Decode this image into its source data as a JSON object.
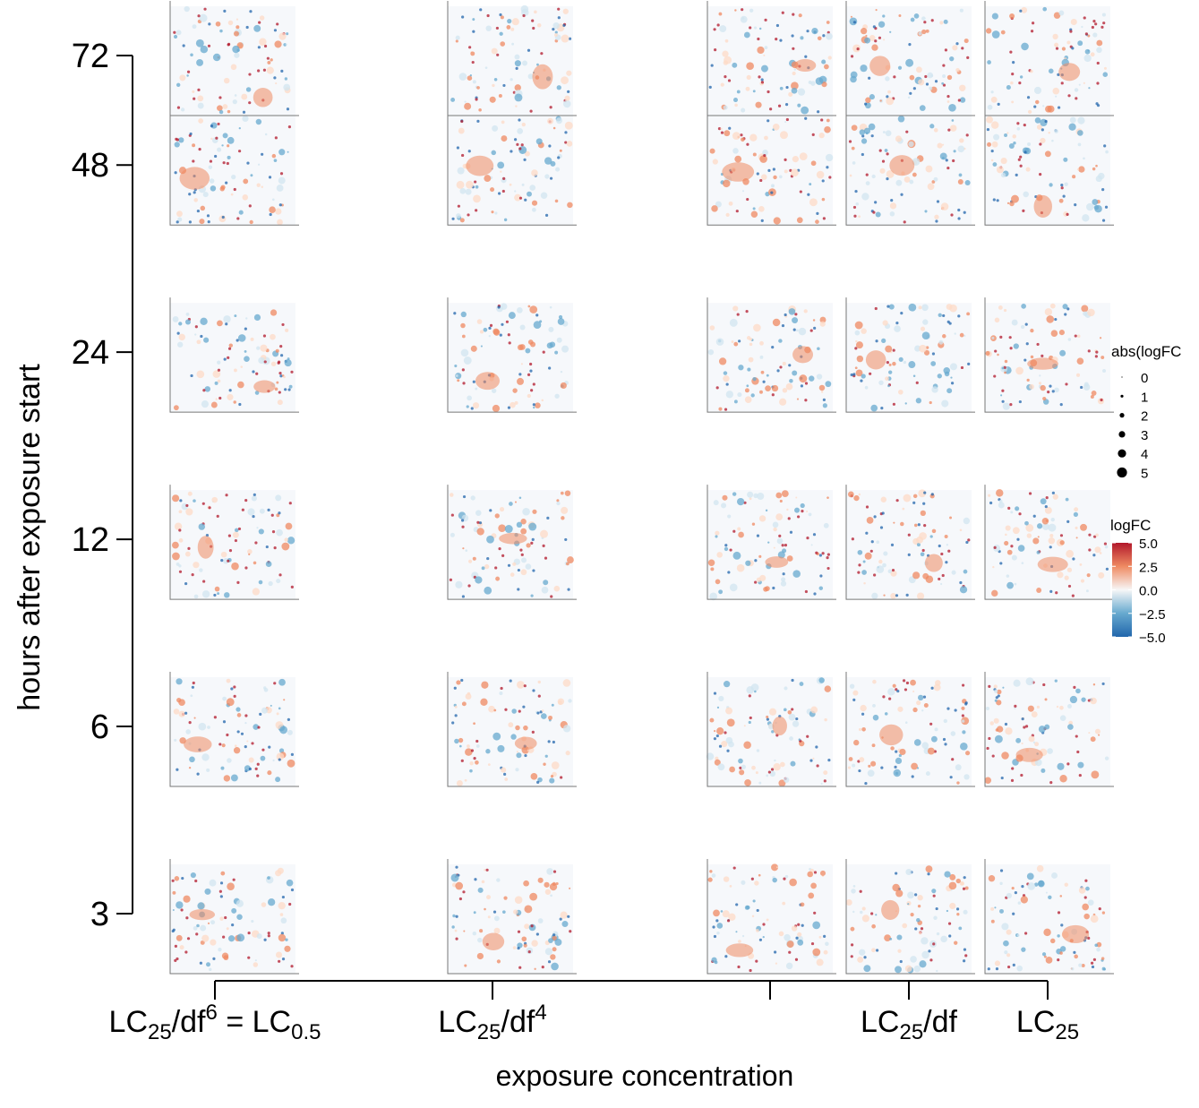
{
  "chart_data": {
    "type": "panel-grid",
    "xlabel": "exposure concentration",
    "ylabel": "hours after exposure start",
    "xlim": [
      -6,
      0
    ],
    "xticks": [
      {
        "value": -6,
        "label": [
          {
            "text": "LC",
            "pos": "base"
          },
          {
            "text": "25",
            "pos": "sub"
          },
          {
            "text": "/df",
            "pos": "base"
          },
          {
            "text": "6",
            "pos": "sup"
          },
          {
            "text": " = LC",
            "pos": "base"
          },
          {
            "text": "0.5",
            "pos": "sub"
          }
        ]
      },
      {
        "value": -4,
        "label": [
          {
            "text": "LC",
            "pos": "base"
          },
          {
            "text": "25",
            "pos": "sub"
          },
          {
            "text": "/df",
            "pos": "base"
          },
          {
            "text": "4",
            "pos": "sup"
          }
        ]
      },
      {
        "value": -2,
        "label": null
      },
      {
        "value": -1,
        "label": [
          {
            "text": "LC",
            "pos": "base"
          },
          {
            "text": "25",
            "pos": "sub"
          },
          {
            "text": "/df",
            "pos": "base"
          }
        ]
      },
      {
        "value": 0,
        "label": [
          {
            "text": "LC",
            "pos": "base"
          },
          {
            "text": "25",
            "pos": "sub"
          }
        ]
      }
    ],
    "ylim": [
      3,
      72
    ],
    "ylog": true,
    "yticks": [
      3,
      6,
      12,
      24,
      48,
      72
    ],
    "size_legend": {
      "title": "abs(logFC",
      "values": [
        0,
        1,
        2,
        3,
        4,
        5
      ]
    },
    "color_legend": {
      "title": "logFC",
      "lim": [
        -5,
        5
      ],
      "colors": [
        "#2166ac",
        "#67a9cf",
        "#f7f7f7",
        "#ef8a62",
        "#b2182b"
      ],
      "ticks": [
        {
          "value": 5,
          "label": "5.0"
        },
        {
          "value": 2.5,
          "label": "2.5"
        },
        {
          "value": 0,
          "label": "0.0"
        },
        {
          "value": -2.5,
          "label": "−2.5"
        },
        {
          "value": -5,
          "label": "−5.0"
        }
      ]
    }
  }
}
